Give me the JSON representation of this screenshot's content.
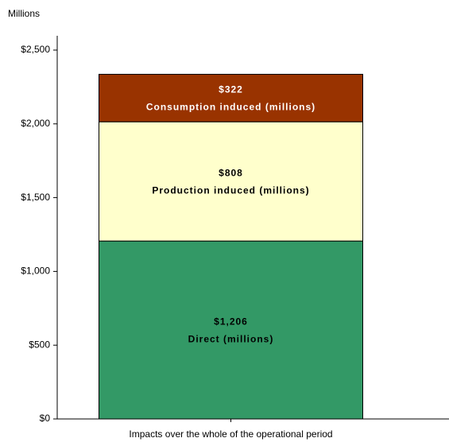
{
  "chart_data": {
    "type": "stacked_bar",
    "y_axis_label": "Millions",
    "categories": [
      "Impacts over the whole of the operational period"
    ],
    "series": [
      {
        "name": "Direct (millions)",
        "color": "#339966",
        "values": [
          1206
        ],
        "value_labels": [
          "$1,206"
        ],
        "label_color": "#000000"
      },
      {
        "name": "Production induced (millions)",
        "color": "#ffffcc",
        "values": [
          808
        ],
        "value_labels": [
          "$808"
        ],
        "label_color": "#000000"
      },
      {
        "name": "Consumption induced (millions)",
        "color": "#993300",
        "values": [
          322
        ],
        "value_labels": [
          "$322"
        ],
        "label_color": "#ffffff"
      }
    ],
    "ylim": [
      0,
      2500
    ],
    "yticks": [
      {
        "value": 0,
        "label": "$0"
      },
      {
        "value": 500,
        "label": "$500"
      },
      {
        "value": 1000,
        "label": "$1,000"
      },
      {
        "value": 1500,
        "label": "$1,500"
      },
      {
        "value": 2000,
        "label": "$2,000"
      },
      {
        "value": 2500,
        "label": "$2,500"
      }
    ]
  }
}
